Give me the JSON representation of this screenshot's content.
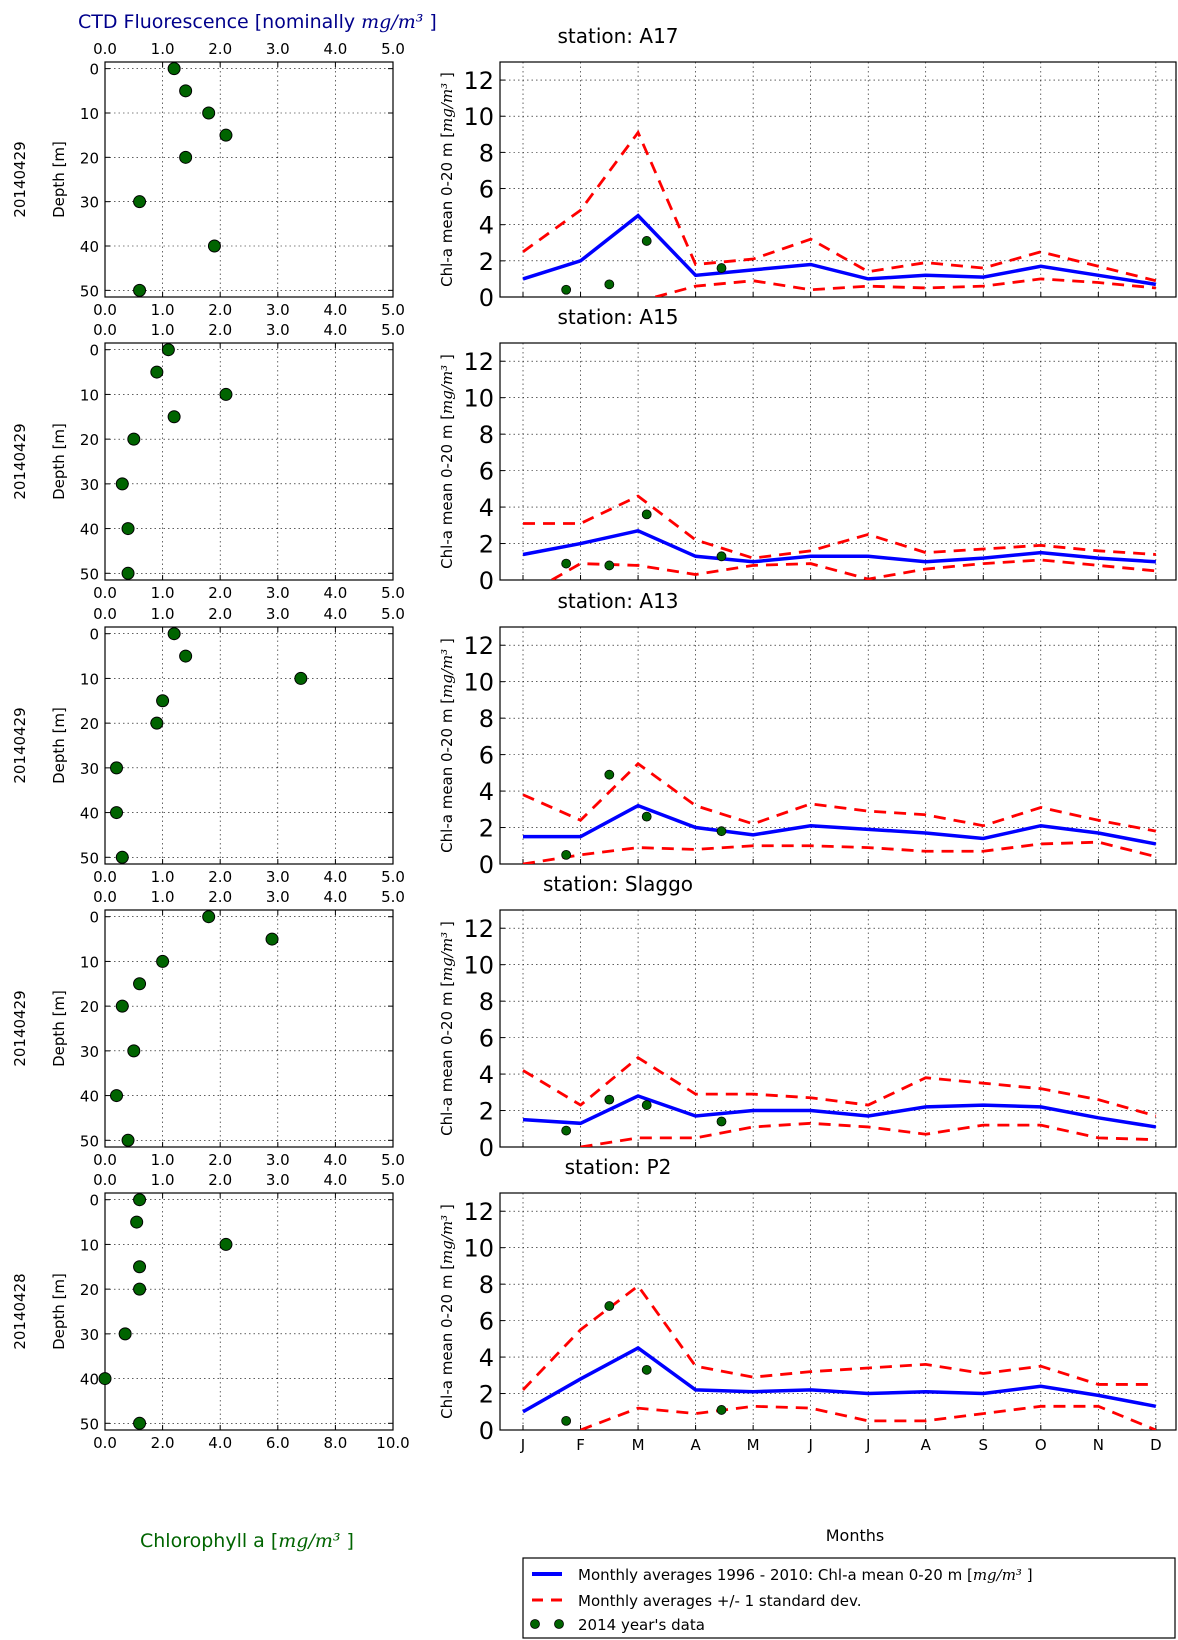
{
  "figure": {
    "top_axis_label": "CTD Fluorescence [nominally",
    "top_axis_unit": "mg/m³",
    "top_axis_close": "]",
    "bottom_axis_label": "Chlorophyll a [",
    "bottom_axis_unit": "mg/m³",
    "bottom_axis_close": "]",
    "depth_label": "Depth [m]",
    "chl_label": "Chl-a mean 0-20 m [",
    "chl_unit": "mg/m³",
    "chl_close": "]",
    "months_label": "Months",
    "month_ticks": [
      "J",
      "F",
      "M",
      "A",
      "M",
      "J",
      "J",
      "A",
      "S",
      "O",
      "N",
      "D"
    ],
    "legend": [
      {
        "text": "Monthly averages 1996 - 2010: Chl-a mean 0-20 m [",
        "unit": "mg/m³",
        "close": " ]",
        "style": "solid"
      },
      {
        "text": "Monthly averages +/- 1 standard dev.",
        "style": "dashed"
      },
      {
        "text": "2014 year's data",
        "style": "dots"
      }
    ]
  },
  "colors": {
    "mean_line": "#0000ff",
    "std_lines": "#ff0000",
    "dots": "#006400",
    "top_axis_text": "#00008b",
    "bottom_axis_text": "#006400"
  },
  "chart_data": [
    {
      "type": "scatter",
      "date": "20140429",
      "top_ticks": [
        "0.0",
        "1.0",
        "2.0",
        "3.0",
        "4.0",
        "5.0"
      ],
      "bottom_ticks": [
        "0.0",
        "1.0",
        "2.0",
        "3.0",
        "4.0",
        "5.0"
      ],
      "xlim": [
        0,
        5
      ],
      "depth_ticks": [
        "0",
        "10",
        "20",
        "30",
        "40",
        "50"
      ],
      "ylim": [
        -1.5,
        51.5
      ],
      "points": [
        [
          1.2,
          0
        ],
        [
          1.4,
          5
        ],
        [
          1.8,
          10
        ],
        [
          2.1,
          15
        ],
        [
          1.4,
          20
        ],
        [
          0.6,
          30
        ],
        [
          1.9,
          40
        ],
        [
          0.6,
          50
        ]
      ]
    },
    {
      "type": "line",
      "title": "station: A17",
      "yticks": [
        "0",
        "2",
        "4",
        "6",
        "8",
        "10",
        "12"
      ],
      "ylim": [
        0,
        13
      ],
      "xlim": [
        0.6,
        12.35
      ],
      "series": [
        {
          "name": "Monthly averages 1996 - 2010: Chl-a mean 0-20 m",
          "x": [
            1,
            2,
            3,
            4,
            5,
            6,
            7,
            8,
            9,
            10,
            11,
            12
          ],
          "values": [
            1.0,
            2.0,
            4.5,
            1.2,
            1.5,
            1.8,
            1.0,
            1.2,
            1.1,
            1.7,
            1.2,
            0.7
          ]
        },
        {
          "name": "+1 standard dev.",
          "x": [
            1,
            2,
            3,
            4,
            5,
            6,
            7,
            8,
            9,
            10,
            11,
            12
          ],
          "values": [
            2.5,
            4.8,
            9.1,
            1.8,
            2.1,
            3.2,
            1.4,
            1.9,
            1.6,
            2.5,
            1.7,
            0.9
          ]
        },
        {
          "name": "-1 standard dev.",
          "x": [
            3.3,
            4,
            5,
            6,
            7,
            8,
            9,
            10,
            11,
            12
          ],
          "values": [
            0.0,
            0.6,
            0.9,
            0.4,
            0.6,
            0.5,
            0.6,
            1.0,
            0.8,
            0.5
          ]
        }
      ],
      "dots": [
        [
          1.75,
          0.4
        ],
        [
          2.5,
          0.7
        ],
        [
          3.15,
          3.1
        ],
        [
          4.45,
          1.6
        ]
      ]
    },
    {
      "type": "scatter",
      "date": "20140429",
      "top_ticks": [
        "0.0",
        "1.0",
        "2.0",
        "3.0",
        "4.0",
        "5.0"
      ],
      "bottom_ticks": [
        "0.0",
        "1.0",
        "2.0",
        "3.0",
        "4.0",
        "5.0"
      ],
      "xlim": [
        0,
        5
      ],
      "depth_ticks": [
        "0",
        "10",
        "20",
        "30",
        "40",
        "50"
      ],
      "ylim": [
        -1.5,
        51.5
      ],
      "points": [
        [
          1.1,
          0
        ],
        [
          0.9,
          5
        ],
        [
          2.1,
          10
        ],
        [
          1.2,
          15
        ],
        [
          0.5,
          20
        ],
        [
          0.3,
          30
        ],
        [
          0.4,
          40
        ],
        [
          0.4,
          50
        ]
      ]
    },
    {
      "type": "line",
      "title": "station: A15",
      "yticks": [
        "0",
        "2",
        "4",
        "6",
        "8",
        "10",
        "12"
      ],
      "ylim": [
        0,
        13
      ],
      "xlim": [
        0.6,
        12.35
      ],
      "series": [
        {
          "name": "Monthly averages 1996 - 2010: Chl-a mean 0-20 m",
          "x": [
            1,
            2,
            3,
            4,
            5,
            6,
            7,
            8,
            9,
            10,
            11,
            12
          ],
          "values": [
            1.4,
            2.0,
            2.7,
            1.3,
            1.0,
            1.3,
            1.3,
            1.0,
            1.2,
            1.5,
            1.2,
            1.0
          ]
        },
        {
          "name": "+1 standard dev.",
          "x": [
            1,
            2,
            3,
            4,
            5,
            6,
            7,
            8,
            9,
            10,
            11,
            12
          ],
          "values": [
            3.1,
            3.1,
            4.6,
            2.2,
            1.2,
            1.6,
            2.5,
            1.5,
            1.7,
            1.9,
            1.6,
            1.4
          ]
        },
        {
          "name": "-1 standard dev.",
          "x": [
            1.5,
            2,
            3,
            4,
            5,
            6,
            7,
            8,
            9,
            10,
            11,
            12
          ],
          "values": [
            0.0,
            0.9,
            0.8,
            0.3,
            0.8,
            0.9,
            0.05,
            0.6,
            0.9,
            1.1,
            0.8,
            0.5
          ]
        }
      ],
      "dots": [
        [
          1.75,
          0.9
        ],
        [
          2.5,
          0.8
        ],
        [
          3.15,
          3.6
        ],
        [
          4.45,
          1.3
        ]
      ]
    },
    {
      "type": "scatter",
      "date": "20140429",
      "top_ticks": [
        "0.0",
        "1.0",
        "2.0",
        "3.0",
        "4.0",
        "5.0"
      ],
      "bottom_ticks": [
        "0.0",
        "1.0",
        "2.0",
        "3.0",
        "4.0",
        "5.0"
      ],
      "xlim": [
        0,
        5
      ],
      "depth_ticks": [
        "0",
        "10",
        "20",
        "30",
        "40",
        "50"
      ],
      "ylim": [
        -1.5,
        51.5
      ],
      "points": [
        [
          1.2,
          0
        ],
        [
          1.4,
          5
        ],
        [
          3.4,
          10
        ],
        [
          1.0,
          15
        ],
        [
          0.9,
          20
        ],
        [
          0.2,
          30
        ],
        [
          0.2,
          40
        ],
        [
          0.3,
          50
        ]
      ]
    },
    {
      "type": "line",
      "title": "station: A13",
      "yticks": [
        "0",
        "2",
        "4",
        "6",
        "8",
        "10",
        "12"
      ],
      "ylim": [
        0,
        13
      ],
      "xlim": [
        0.6,
        12.35
      ],
      "series": [
        {
          "name": "Monthly averages 1996 - 2010: Chl-a mean 0-20 m",
          "x": [
            1,
            2,
            3,
            4,
            5,
            6,
            7,
            8,
            9,
            10,
            11,
            12
          ],
          "values": [
            1.5,
            1.5,
            3.2,
            2.0,
            1.6,
            2.1,
            1.9,
            1.7,
            1.4,
            2.1,
            1.7,
            1.1
          ]
        },
        {
          "name": "+1 standard dev.",
          "x": [
            1,
            2,
            3,
            4,
            5,
            6,
            7,
            8,
            9,
            10,
            11,
            12
          ],
          "values": [
            3.8,
            2.4,
            5.5,
            3.2,
            2.2,
            3.3,
            2.9,
            2.7,
            2.1,
            3.1,
            2.4,
            1.8
          ]
        },
        {
          "name": "-1 standard dev.",
          "x": [
            1,
            2,
            3,
            4,
            5,
            6,
            7,
            8,
            9,
            10,
            11,
            12
          ],
          "values": [
            0.0,
            0.5,
            0.9,
            0.8,
            1.0,
            1.0,
            0.9,
            0.7,
            0.7,
            1.1,
            1.2,
            0.4
          ]
        }
      ],
      "dots": [
        [
          1.75,
          0.5
        ],
        [
          2.5,
          4.9
        ],
        [
          3.15,
          2.6
        ],
        [
          4.45,
          1.8
        ]
      ]
    },
    {
      "type": "scatter",
      "date": "20140429",
      "top_ticks": [
        "0.0",
        "1.0",
        "2.0",
        "3.0",
        "4.0",
        "5.0"
      ],
      "bottom_ticks": [
        "0.0",
        "1.0",
        "2.0",
        "3.0",
        "4.0",
        "5.0"
      ],
      "xlim": [
        0,
        5
      ],
      "depth_ticks": [
        "0",
        "10",
        "20",
        "30",
        "40",
        "50"
      ],
      "ylim": [
        -1.5,
        51.5
      ],
      "points": [
        [
          1.8,
          0
        ],
        [
          2.9,
          5
        ],
        [
          1.0,
          10
        ],
        [
          0.6,
          15
        ],
        [
          0.3,
          20
        ],
        [
          0.5,
          30
        ],
        [
          0.2,
          40
        ],
        [
          0.4,
          50
        ]
      ]
    },
    {
      "type": "line",
      "title": "station: Slaggo",
      "yticks": [
        "0",
        "2",
        "4",
        "6",
        "8",
        "10",
        "12"
      ],
      "ylim": [
        0,
        13
      ],
      "xlim": [
        0.6,
        12.35
      ],
      "series": [
        {
          "name": "Monthly averages 1996 - 2010: Chl-a mean 0-20 m",
          "x": [
            1,
            2,
            3,
            4,
            5,
            6,
            7,
            8,
            9,
            10,
            11,
            12
          ],
          "values": [
            1.5,
            1.3,
            2.8,
            1.7,
            2.0,
            2.0,
            1.7,
            2.2,
            2.3,
            2.2,
            1.6,
            1.1
          ]
        },
        {
          "name": "+1 standard dev.",
          "x": [
            1,
            2,
            3,
            4,
            5,
            6,
            7,
            8,
            9,
            10,
            11,
            12
          ],
          "values": [
            4.2,
            2.3,
            4.9,
            2.9,
            2.9,
            2.7,
            2.3,
            3.8,
            3.5,
            3.2,
            2.6,
            1.7
          ]
        },
        {
          "name": "-1 standard dev.",
          "x": [
            2,
            3,
            4,
            5,
            6,
            7,
            8,
            9,
            10,
            11,
            12
          ],
          "values": [
            0.0,
            0.5,
            0.5,
            1.1,
            1.3,
            1.1,
            0.7,
            1.2,
            1.2,
            0.5,
            0.4
          ]
        }
      ],
      "dots": [
        [
          1.75,
          0.9
        ],
        [
          2.5,
          2.6
        ],
        [
          3.15,
          2.3
        ],
        [
          4.45,
          1.4
        ]
      ]
    },
    {
      "type": "scatter",
      "date": "20140428",
      "top_ticks": [
        "0.0",
        "1.0",
        "2.0",
        "3.0",
        "4.0",
        "5.0"
      ],
      "bottom_ticks": [
        "0.0",
        "2.0",
        "4.0",
        "6.0",
        "8.0",
        "10.0"
      ],
      "xlim": [
        0,
        5
      ],
      "depth_ticks": [
        "0",
        "10",
        "20",
        "30",
        "40",
        "50"
      ],
      "ylim": [
        -1.5,
        51.5
      ],
      "points": [
        [
          0.6,
          0
        ],
        [
          0.55,
          5
        ],
        [
          2.1,
          10
        ],
        [
          0.6,
          15
        ],
        [
          0.6,
          20
        ],
        [
          0.35,
          30
        ],
        [
          0.0,
          40
        ],
        [
          0.6,
          50
        ]
      ]
    },
    {
      "type": "line",
      "title": "station: P2",
      "yticks": [
        "0",
        "2",
        "4",
        "6",
        "8",
        "10",
        "12"
      ],
      "ylim": [
        0,
        13
      ],
      "xlim": [
        0.6,
        12.35
      ],
      "series": [
        {
          "name": "Monthly averages 1996 - 2010: Chl-a mean 0-20 m",
          "x": [
            1,
            2,
            3,
            4,
            5,
            6,
            7,
            8,
            9,
            10,
            11,
            12
          ],
          "values": [
            1.0,
            2.8,
            4.5,
            2.2,
            2.1,
            2.2,
            2.0,
            2.1,
            2.0,
            2.4,
            1.9,
            1.3
          ]
        },
        {
          "name": "+1 standard dev.",
          "x": [
            1,
            2,
            3,
            4,
            5,
            6,
            7,
            8,
            9,
            10,
            11,
            12
          ],
          "values": [
            2.2,
            5.5,
            7.9,
            3.5,
            2.9,
            3.2,
            3.4,
            3.6,
            3.1,
            3.5,
            2.5,
            2.5
          ]
        },
        {
          "name": "-1 standard dev.",
          "x": [
            2,
            3,
            4,
            5,
            6,
            7,
            8,
            9,
            10,
            11,
            12
          ],
          "values": [
            0.0,
            1.2,
            0.9,
            1.3,
            1.2,
            0.5,
            0.5,
            0.9,
            1.3,
            1.3,
            0.0
          ]
        }
      ],
      "dots": [
        [
          1.75,
          0.5
        ],
        [
          2.5,
          6.8
        ],
        [
          3.15,
          3.3
        ],
        [
          4.45,
          1.1
        ]
      ]
    }
  ]
}
